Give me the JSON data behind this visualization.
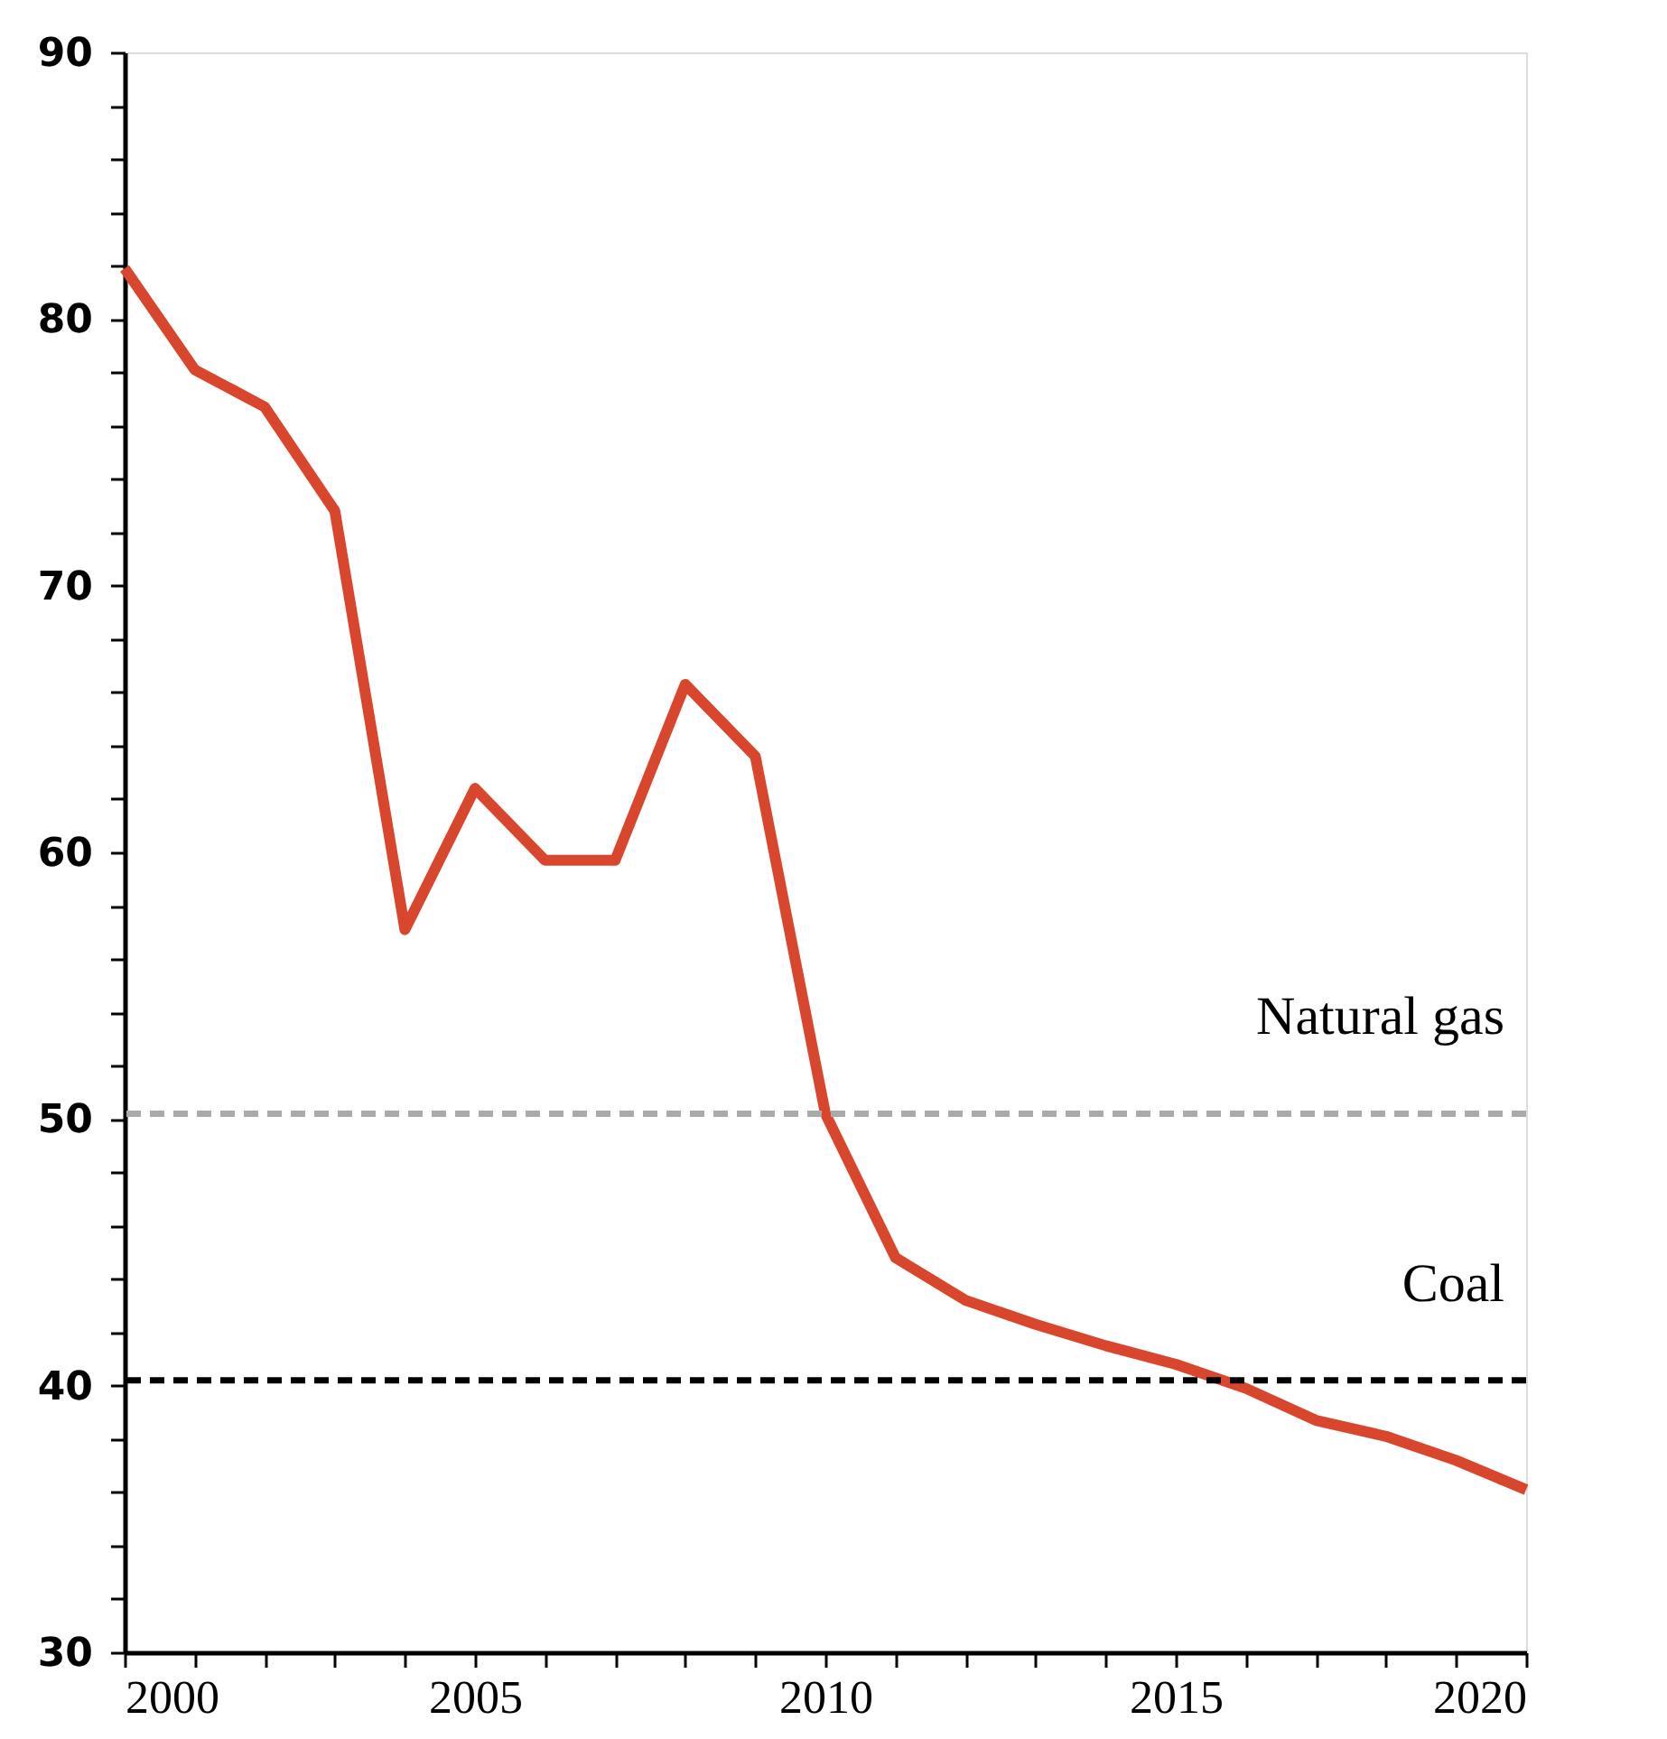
{
  "chart_data": {
    "type": "line",
    "x": [
      2000,
      2001,
      2002,
      2003,
      2004,
      2005,
      2006,
      2007,
      2008,
      2009,
      2010,
      2011,
      2012,
      2013,
      2014,
      2015,
      2016,
      2017,
      2018,
      2019,
      2020
    ],
    "series": [
      {
        "color": "#d9462e",
        "values": [
          81.9,
          78.1,
          76.7,
          72.8,
          57.1,
          62.4,
          59.7,
          59.7,
          66.3,
          63.6,
          50.2,
          44.8,
          43.2,
          42.3,
          41.5,
          40.8,
          39.9,
          38.7,
          38.1,
          37.2,
          36.1
        ]
      }
    ],
    "xlim": [
      2000,
      2020
    ],
    "xticks": [
      2000,
      {
        "value": 2001,
        "label": null
      },
      {
        "value": 2002,
        "label": null
      },
      {
        "value": 2003,
        "label": null
      },
      {
        "value": 2004,
        "label": null
      },
      2005,
      {
        "value": 2006,
        "label": null
      },
      {
        "value": 2007,
        "label": null
      },
      {
        "value": 2008,
        "label": null
      },
      {
        "value": 2009,
        "label": null
      },
      2010,
      {
        "value": 2011,
        "label": null
      },
      {
        "value": 2012,
        "label": null
      },
      {
        "value": 2013,
        "label": null
      },
      {
        "value": 2014,
        "label": null
      },
      2015,
      {
        "value": 2016,
        "label": null
      },
      {
        "value": 2017,
        "label": null
      },
      {
        "value": 2018,
        "label": null
      },
      {
        "value": 2019,
        "label": null
      },
      2020
    ],
    "ylim": [
      30,
      90
    ],
    "yticks": [
      30,
      {
        "value": 32,
        "label": null
      },
      {
        "value": 34,
        "label": null
      },
      {
        "value": 36,
        "label": null
      },
      {
        "value": 38,
        "label": null
      },
      40,
      {
        "value": 42,
        "label": null
      },
      {
        "value": 44,
        "label": null
      },
      {
        "value": 46,
        "label": null
      },
      {
        "value": 48,
        "label": null
      },
      50,
      {
        "value": 52,
        "label": null
      },
      {
        "value": 54,
        "label": null
      },
      {
        "value": 56,
        "label": null
      },
      {
        "value": 58,
        "label": null
      },
      60,
      {
        "value": 62,
        "label": null
      },
      {
        "value": 64,
        "label": null
      },
      {
        "value": 66,
        "label": null
      },
      {
        "value": 68,
        "label": null
      },
      70,
      {
        "value": 72,
        "label": null
      },
      {
        "value": 74,
        "label": null
      },
      {
        "value": 76,
        "label": null
      },
      {
        "value": 78,
        "label": null
      },
      80,
      {
        "value": 82,
        "label": null
      },
      {
        "value": 84,
        "label": null
      },
      {
        "value": 86,
        "label": null
      },
      {
        "value": 88,
        "label": null
      },
      90
    ],
    "ref_lines": [
      {
        "axis": "y",
        "value": 50.2,
        "label": "Natural gas",
        "color": "#aaaaaa",
        "line_style": "dashed"
      },
      {
        "axis": "y",
        "value": 40.2,
        "label": "Coal",
        "color": "#000000",
        "line_style": "dashed"
      }
    ],
    "grid": false,
    "marker": "none",
    "line_style": "solid"
  }
}
